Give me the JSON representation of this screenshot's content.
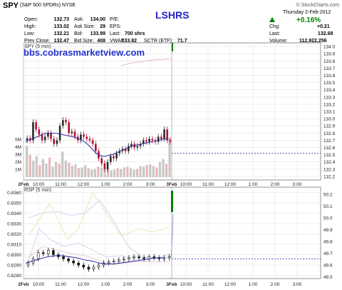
{
  "header": {
    "symbol": "SPY",
    "name": "(S&P 500 SPDRs)",
    "exchange": "NYSE",
    "credit": "© StockCharts.com",
    "date": "Thursday 2-Feb-2012",
    "change_pct": "+0.16%",
    "watermark": "LSHRS",
    "site": "bbs.cobrasmarketview.com"
  },
  "quote": {
    "open_label": "Open:",
    "open": "132.73",
    "high_label": "High:",
    "high": "133.02",
    "low_label": "Low:",
    "low": "132.21",
    "prev_label": "Prev Close:",
    "prev": "132.47",
    "ask_label": "Ask:",
    "ask": "134.00",
    "asksize_label": "Ask Size:",
    "asksize": "29",
    "bid_label": "Bid:",
    "bid": "133.99",
    "bidsize_label": "Bid Size:",
    "bidsize": "408",
    "pe_label": "P/E:",
    "pe": "",
    "eps_label": "EPS:",
    "eps": "",
    "last_label": "Last:",
    "last_mid": "700 shrs",
    "vwap_label": "VWAP:",
    "vwap": "133.82",
    "sctr_label": "SCTR (ETF):",
    "sctr": "71.7",
    "chg_label": "Chg:",
    "chg": "+0.21",
    "last_right_label": "Last:",
    "last": "132.68",
    "volume_label": "Volume:",
    "volume": "112,922,256"
  },
  "colors": {
    "up": "#2a2a2a",
    "down": "#b01030",
    "ma": "#2a2aa0",
    "volume": "#c8c8c8",
    "accent": "#2222cc",
    "gain": "#008000",
    "dotted": "#2020a0"
  },
  "chart_data": [
    {
      "type": "line",
      "title": "SPY (5 min)",
      "y_ticks": [
        "134.0",
        "133.9",
        "133.8",
        "133.7",
        "133.6",
        "133.5",
        "133.4",
        "133.3",
        "133.2",
        "133.1",
        "133.0",
        "132.9",
        "132.8",
        "132.7",
        "132.6",
        "132.5",
        "132.4",
        "132.3",
        "132.2"
      ],
      "ylim": [
        132.15,
        134.05
      ],
      "x_ticks": [
        "2Feb",
        "10:00",
        "11:00",
        "12:00",
        "1:00",
        "2:00",
        "3:00",
        "3Feb",
        "10:00",
        "11:00",
        "12:00",
        "1:00",
        "2:00",
        "3:00"
      ],
      "volume_ticks": [
        "5M",
        "4M",
        "3M",
        "2M",
        "1M"
      ],
      "close_series": [
        132.73,
        132.7,
        132.95,
        132.85,
        132.78,
        132.7,
        132.75,
        132.8,
        132.72,
        132.65,
        132.7,
        132.9,
        132.98,
        132.95,
        132.8,
        132.82,
        132.75,
        132.7,
        132.78,
        132.75,
        132.72,
        132.7,
        132.65,
        132.55,
        132.45,
        132.38,
        132.3,
        132.4,
        132.48,
        132.45,
        132.52,
        132.55,
        132.58,
        132.55,
        132.62,
        132.65,
        132.6,
        132.62,
        132.65,
        132.7,
        132.68,
        132.72,
        132.7,
        132.68,
        132.75,
        132.72,
        132.85,
        132.7,
        132.68
      ],
      "ma_series": [
        132.68,
        132.7,
        132.72,
        132.74,
        132.76,
        132.78,
        132.8,
        132.8,
        132.8,
        132.8,
        132.79,
        132.78,
        132.77,
        132.76,
        132.75,
        132.74,
        132.72,
        132.7,
        132.67,
        132.63,
        132.58,
        132.53,
        132.5,
        132.48,
        132.48,
        132.49,
        132.5,
        132.52,
        132.54,
        132.56,
        132.58,
        132.6,
        132.62,
        132.63,
        132.64,
        132.65,
        132.66,
        132.67,
        132.68,
        132.69,
        132.7,
        132.71,
        132.72,
        132.71
      ],
      "volume_millions": [
        4.2,
        3.0,
        2.2,
        2.8,
        1.6,
        2.4,
        1.8,
        2.6,
        1.4,
        2.0,
        1.8,
        3.4,
        2.2,
        1.9,
        1.5,
        1.7,
        1.2,
        1.3,
        1.6,
        1.2,
        1.0,
        1.1,
        1.4,
        1.3,
        1.1,
        1.2,
        0.9,
        1.0,
        1.2,
        1.1,
        1.3,
        1.4,
        1.2,
        1.0,
        1.1,
        1.5,
        1.4,
        1.6,
        1.7,
        1.5,
        1.3,
        2.0,
        2.4,
        1.8,
        5.2
      ],
      "last_line": 132.52,
      "dotted_start": "3Feb",
      "dotted_end": "end"
    },
    {
      "type": "line",
      "title": "RSP (5 min)",
      "y_ticks_left": [
        "0.8360",
        "0.8350",
        "0.8340",
        "0.8330",
        "0.8320",
        "0.8310",
        "0.8300",
        "0.8290",
        "0.8280"
      ],
      "y_ticks_right": [
        "50.2",
        "50.1",
        "50.0",
        "49.9",
        "49.8",
        "49.7",
        "49.6",
        "49.5"
      ],
      "ylim_left": [
        0.8277,
        0.8365
      ],
      "x_ticks": [
        "2Feb",
        "10:00",
        "11:00",
        "12:00",
        "1:00",
        "2:00",
        "3:00",
        "3Feb",
        "10:00",
        "11:00",
        "12:00",
        "1:00",
        "2:00",
        "3:00"
      ],
      "close_series": [
        0.8292,
        0.8296,
        0.8302,
        0.8301,
        0.8304,
        0.83,
        0.8298,
        0.8296,
        0.8294,
        0.8292,
        0.829,
        0.8288,
        0.8286,
        0.8288,
        0.829,
        0.8292,
        0.8293,
        0.8294,
        0.8295,
        0.8296,
        0.8297,
        0.8298,
        0.8297,
        0.8296,
        0.8298,
        0.8297,
        0.8296,
        0.8297,
        0.8298
      ],
      "ma_series": [
        0.8292,
        0.8294,
        0.8296,
        0.8298,
        0.8299,
        0.8299,
        0.8298,
        0.8297,
        0.8295,
        0.8294,
        0.8292,
        0.8291,
        0.8291,
        0.8292,
        0.8293,
        0.8294,
        0.8295,
        0.8296,
        0.8297,
        0.8297
      ],
      "last_line": 0.8296,
      "dotted_start": "3Feb",
      "dotted_end": "end"
    }
  ]
}
